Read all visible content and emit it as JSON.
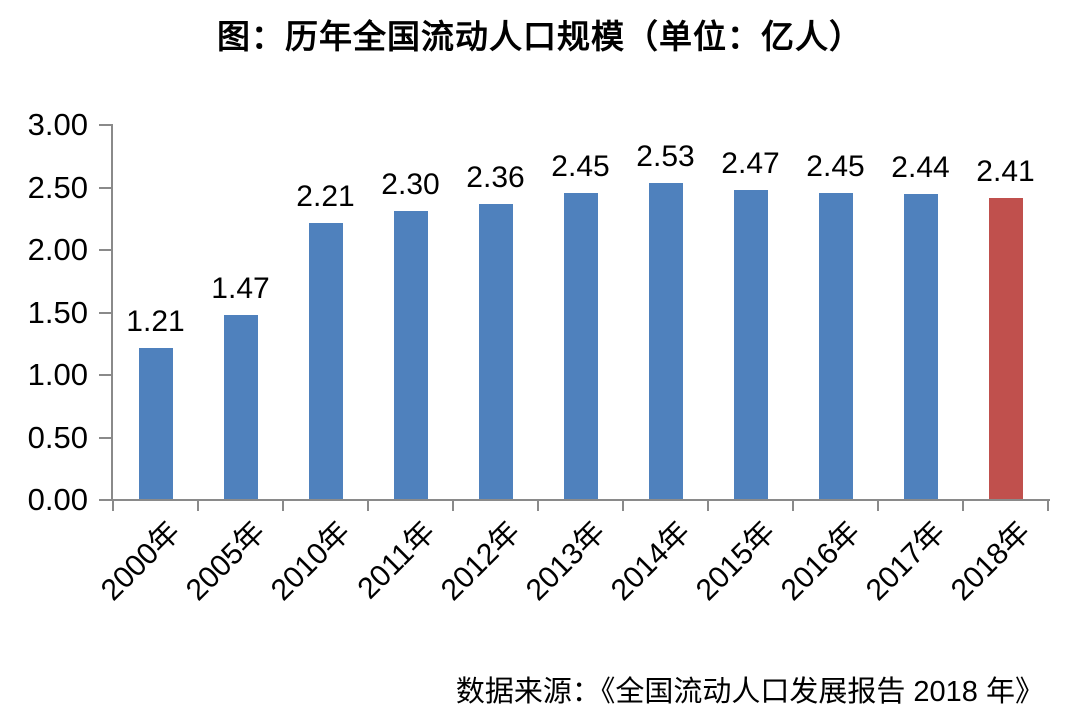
{
  "title": "图：历年全国流动人口规模（单位：亿人）",
  "source": "数据来源：《全国流动人口发展报告 2018 年》",
  "colors": {
    "bar_default": "#4F81BD",
    "bar_highlight": "#C0504D",
    "axis": "#8a8a8a",
    "text": "#000000",
    "background": "#ffffff"
  },
  "chart_data": {
    "type": "bar",
    "title": "图：历年全国流动人口规模（单位：亿人）",
    "categories": [
      "2000年",
      "2005年",
      "2010年",
      "2011年",
      "2012年",
      "2013年",
      "2014年",
      "2015年",
      "2016年",
      "2017年",
      "2018年"
    ],
    "values": [
      1.21,
      1.47,
      2.21,
      2.3,
      2.36,
      2.45,
      2.53,
      2.47,
      2.45,
      2.44,
      2.41
    ],
    "value_labels": [
      "1.21",
      "1.47",
      "2.21",
      "2.30",
      "2.36",
      "2.45",
      "2.53",
      "2.47",
      "2.45",
      "2.44",
      "2.41"
    ],
    "highlight_index": 10,
    "xlabel": "",
    "ylabel": "",
    "ylim": [
      0,
      3
    ],
    "y_tick_labels": [
      "0.00",
      "0.50",
      "1.00",
      "1.50",
      "2.00",
      "2.50",
      "3.00"
    ],
    "grid": false,
    "legend": null,
    "caption": "数据来源：《全国流动人口发展报告 2018 年》"
  }
}
